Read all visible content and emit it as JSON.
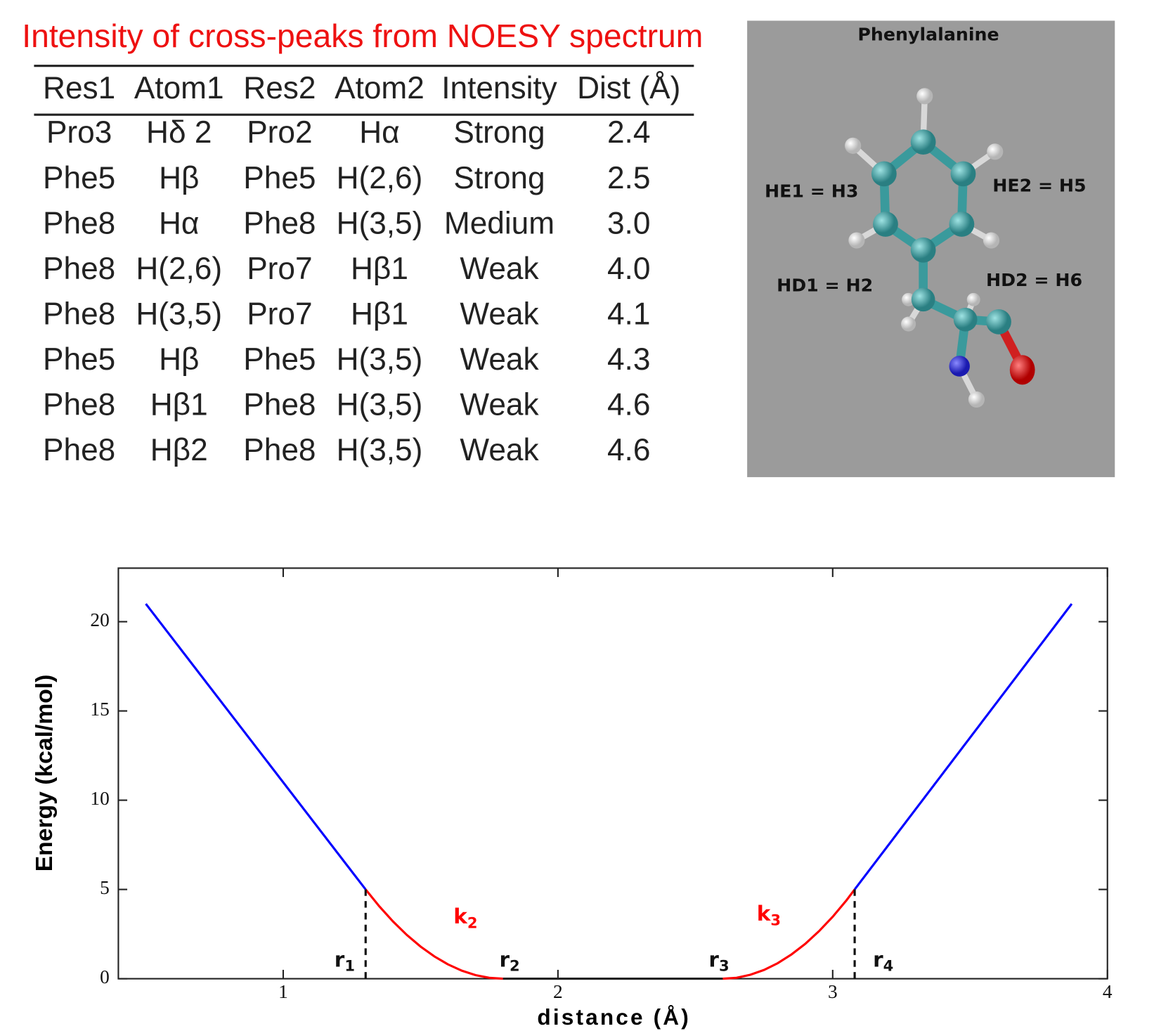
{
  "table": {
    "title": "Intensity of cross-peaks from NOESY spectrum",
    "header": [
      "Res1",
      "Atom1",
      "Res2",
      "Atom2",
      "Intensity",
      "Dist (Å)"
    ],
    "rows": [
      [
        "Pro3",
        "Hδ 2",
        "Pro2",
        "Hα",
        "Strong",
        "2.4"
      ],
      [
        "Phe5",
        "Hβ",
        "Phe5",
        "H(2,6)",
        "Strong",
        "2.5"
      ],
      [
        "Phe8",
        "Hα",
        "Phe8",
        "H(3,5)",
        "Medium",
        "3.0"
      ],
      [
        "Phe8",
        "H(2,6)",
        "Pro7",
        "Hβ1",
        "Weak",
        "4.0"
      ],
      [
        "Phe8",
        "H(3,5)",
        "Pro7",
        "Hβ1",
        "Weak",
        "4.1"
      ],
      [
        "Phe5",
        "Hβ",
        "Phe5",
        "H(3,5)",
        "Weak",
        "4.3"
      ],
      [
        "Phe8",
        "Hβ1",
        "Phe8",
        "H(3,5)",
        "Weak",
        "4.6"
      ],
      [
        "Phe8",
        "Hβ2",
        "Phe8",
        "H(3,5)",
        "Weak",
        "4.6"
      ]
    ]
  },
  "molecule": {
    "title": "Phenylalanine",
    "labels": [
      "HE1 = H3",
      "HE2 = H5",
      "HD1 = H2",
      "HD2 = H6"
    ]
  },
  "chart_data": {
    "type": "line",
    "xlabel": "distance (Å)",
    "ylabel": "Energy (kcal/mol)",
    "xlim": [
      0.4,
      4
    ],
    "ylim": [
      0,
      23
    ],
    "xticks": [
      1,
      2,
      3,
      4
    ],
    "yticks": [
      0,
      5,
      10,
      15,
      20
    ],
    "series": [
      {
        "color": "#0000ff",
        "x": [
          0.5,
          1.3
        ],
        "values": [
          21,
          5
        ]
      },
      {
        "color": "#ff0000",
        "x": [
          1.3,
          1.35,
          1.4,
          1.45,
          1.5,
          1.55,
          1.6,
          1.65,
          1.7,
          1.75,
          1.8
        ],
        "values": [
          5,
          4.05,
          3.2,
          2.45,
          1.8,
          1.25,
          0.8,
          0.45,
          0.2,
          0.05,
          0
        ]
      },
      {
        "color": "#222222",
        "x": [
          1.8,
          2.6
        ],
        "values": [
          0,
          0
        ]
      },
      {
        "color": "#ff0000",
        "x": [
          2.6,
          2.65,
          2.7,
          2.75,
          2.8,
          2.85,
          2.9,
          2.95,
          3.0,
          3.05,
          3.08
        ],
        "values": [
          0,
          0.05,
          0.22,
          0.49,
          0.87,
          1.36,
          1.95,
          2.66,
          3.47,
          4.39,
          5
        ]
      },
      {
        "color": "#0000ff",
        "x": [
          3.08,
          3.87
        ],
        "values": [
          5,
          21
        ]
      }
    ],
    "annotations": [
      {
        "text": "r",
        "sub": "1",
        "color": "#111111"
      },
      {
        "text": "r",
        "sub": "2",
        "color": "#111111"
      },
      {
        "text": "r",
        "sub": "3",
        "color": "#111111"
      },
      {
        "text": "r",
        "sub": "4",
        "color": "#111111"
      },
      {
        "text": "k",
        "sub": "2",
        "color": "#ff0000"
      },
      {
        "text": "k",
        "sub": "3",
        "color": "#ff0000"
      }
    ]
  }
}
